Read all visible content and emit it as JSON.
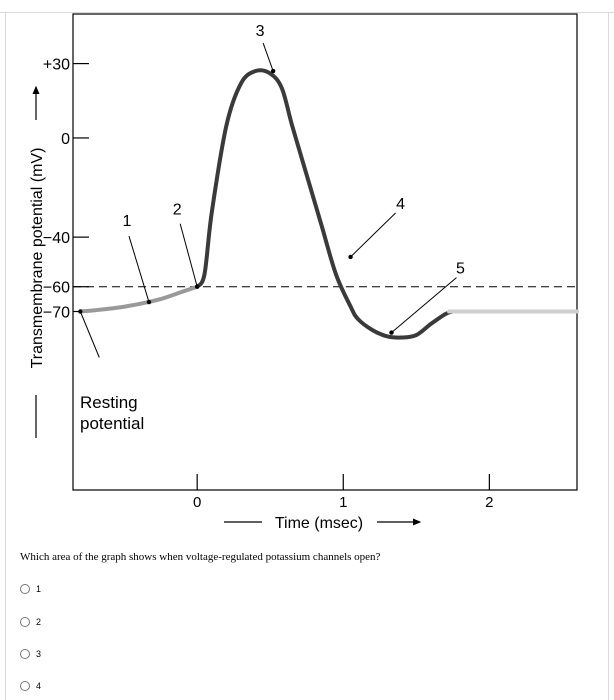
{
  "chart_data": {
    "type": "line",
    "ylabel": "Transmembrane potential (mV)",
    "xlabel": "Time (msec)",
    "y_ticks": [
      "+30",
      "0",
      "-40",
      "-60",
      "-70"
    ],
    "x_ticks": [
      "0",
      "1",
      "2"
    ],
    "xlim": [
      -0.85,
      2.6
    ],
    "ylim": [
      -142,
      50
    ],
    "threshold": -60,
    "resting_label": "Resting potential",
    "resting_lines": [
      "Resting",
      "potential"
    ],
    "series": [
      {
        "x": [
          -0.8,
          -0.7,
          -0.55,
          -0.4,
          -0.25,
          -0.1,
          0.0,
          0.05,
          0.1,
          0.2,
          0.3,
          0.4,
          0.5,
          0.58,
          0.65,
          0.75,
          0.85,
          0.95,
          1.05,
          1.1,
          1.2,
          1.3,
          1.4,
          1.5,
          1.6,
          1.7,
          1.75,
          1.8,
          2.6
        ],
        "y": [
          -70,
          -69.5,
          -68.5,
          -67,
          -65,
          -62,
          -60,
          -55,
          -30,
          5,
          22,
          27,
          26,
          20,
          5,
          -15,
          -35,
          -55,
          -68,
          -73,
          -77.5,
          -80,
          -80.5,
          -79.5,
          -75,
          -71,
          -70,
          -70,
          -70
        ]
      }
    ],
    "annotations": [
      {
        "label": "1",
        "x": -0.33,
        "y": -66.2
      },
      {
        "label": "2",
        "x": 0.0,
        "y": -60
      },
      {
        "label": "3",
        "x": 0.52,
        "y": 27
      },
      {
        "label": "4",
        "x": 1.05,
        "y": -48
      },
      {
        "label": "5",
        "x": 1.33,
        "y": -78.5
      }
    ]
  },
  "question": {
    "text": "Which area of the graph shows when voltage-regulated potassium channels open?",
    "options": [
      "1",
      "2",
      "3",
      "4"
    ]
  }
}
